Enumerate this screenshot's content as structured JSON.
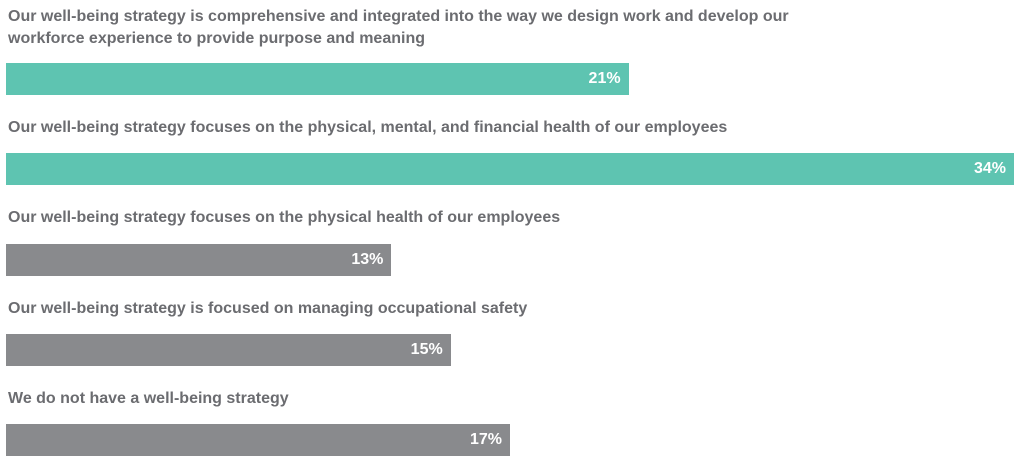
{
  "chart_data": {
    "type": "bar",
    "orientation": "horizontal",
    "categories": [
      "Our well-being strategy is comprehensive and integrated into the way we design work and develop our workforce experience to provide purpose and meaning",
      "Our well-being strategy focuses on the physical, mental, and financial health of our employees",
      "Our well-being strategy focuses on the physical health of our employees",
      "Our well-being strategy is focused on managing occupational safety",
      "We do not have a well-being strategy"
    ],
    "values": [
      21,
      34,
      13,
      15,
      17
    ],
    "value_labels": [
      "21%",
      "34%",
      "13%",
      "15%",
      "17%"
    ],
    "colors": [
      "#5ec4b1",
      "#5ec4b1",
      "#898a8d",
      "#898a8d",
      "#898a8d"
    ]
  }
}
